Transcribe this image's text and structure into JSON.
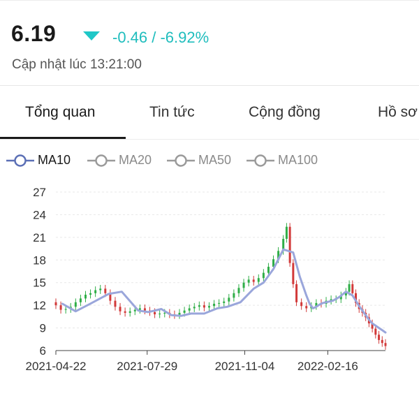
{
  "quote": {
    "price": "6.19",
    "change": "-0.46 / -6.92%",
    "updated": "Cập nhật lúc 13:21:00",
    "trend": "down",
    "down_color": "#1fc7c7"
  },
  "tabs": [
    {
      "label": "Tổng quan",
      "active": true
    },
    {
      "label": "Tin tức",
      "active": false
    },
    {
      "label": "Cộng đồng",
      "active": false
    },
    {
      "label": "Hồ sơ",
      "active": false
    }
  ],
  "legend": [
    {
      "label": "MA10",
      "active": true,
      "color": "#5b6fb5"
    },
    {
      "label": "MA20",
      "active": false,
      "color": "#9a9a9a"
    },
    {
      "label": "MA50",
      "active": false,
      "color": "#9a9a9a"
    },
    {
      "label": "MA100",
      "active": false,
      "color": "#9a9a9a"
    }
  ],
  "chart_data": {
    "type": "candlestick",
    "y_ticks": [
      "27",
      "24",
      "21",
      "18",
      "15",
      "12",
      "9",
      "6"
    ],
    "ylim": [
      6,
      27
    ],
    "x_ticks": [
      "2021-04-22",
      "2021-07-29",
      "2021-11-04",
      "2022-02-16"
    ],
    "x_tick_positions": [
      0,
      0.277,
      0.573,
      0.825
    ],
    "ma_line": {
      "name": "MA10",
      "color": "#9aa6db",
      "t": [
        0.02,
        0.06,
        0.1,
        0.16,
        0.2,
        0.22,
        0.25,
        0.28,
        0.32,
        0.35,
        0.38,
        0.41,
        0.45,
        0.49,
        0.52,
        0.56,
        0.6,
        0.63,
        0.66,
        0.69,
        0.72,
        0.74,
        0.76,
        0.77,
        0.78,
        0.79,
        0.8,
        0.81,
        0.82,
        0.84,
        0.86,
        0.88,
        0.9,
        0.92,
        0.94,
        0.95,
        0.96,
        0.97,
        0.98,
        0.99,
        1.0
      ],
      "values": [
        12.2,
        11.2,
        12.1,
        13.5,
        13.8,
        12.8,
        11.3,
        11.1,
        11.5,
        10.7,
        10.6,
        10.9,
        10.9,
        11.6,
        11.8,
        12.4,
        14.2,
        15.0,
        16.8,
        19.4,
        19.0,
        15.8,
        13.3,
        12.2,
        11.6,
        11.8,
        12.1,
        12.3,
        12.4,
        12.6,
        13.1,
        13.8,
        13.3,
        11.9,
        10.7,
        10.1,
        9.6,
        9.3,
        9.0,
        8.7,
        8.4
      ]
    },
    "candles": {
      "t": [
        0.0,
        0.015,
        0.03,
        0.045,
        0.06,
        0.075,
        0.09,
        0.105,
        0.12,
        0.135,
        0.15,
        0.165,
        0.18,
        0.195,
        0.21,
        0.225,
        0.24,
        0.255,
        0.27,
        0.285,
        0.3,
        0.315,
        0.33,
        0.345,
        0.36,
        0.375,
        0.39,
        0.405,
        0.42,
        0.435,
        0.45,
        0.465,
        0.48,
        0.495,
        0.51,
        0.525,
        0.54,
        0.555,
        0.57,
        0.585,
        0.6,
        0.615,
        0.63,
        0.645,
        0.66,
        0.675,
        0.69,
        0.7,
        0.71,
        0.72,
        0.73,
        0.745,
        0.76,
        0.775,
        0.79,
        0.805,
        0.82,
        0.835,
        0.85,
        0.865,
        0.88,
        0.89,
        0.9,
        0.91,
        0.92,
        0.93,
        0.94,
        0.95,
        0.96,
        0.97,
        0.98,
        0.99,
        1.0
      ],
      "open": [
        12.4,
        12.0,
        11.4,
        11.5,
        11.8,
        12.4,
        12.9,
        13.4,
        13.6,
        14.0,
        14.2,
        13.6,
        12.6,
        11.8,
        11.2,
        11.0,
        11.2,
        11.4,
        11.6,
        11.3,
        11.1,
        10.8,
        10.9,
        11.0,
        10.8,
        10.7,
        11.0,
        11.3,
        11.6,
        11.8,
        12.0,
        11.7,
        11.9,
        12.2,
        12.3,
        12.5,
        13.0,
        13.6,
        14.3,
        15.0,
        15.4,
        15.1,
        15.6,
        16.3,
        17.1,
        18.1,
        19.2,
        20.8,
        22.4,
        17.6,
        14.8,
        12.4,
        11.9,
        11.6,
        11.9,
        12.3,
        12.2,
        12.6,
        12.8,
        12.8,
        13.3,
        13.8,
        14.8,
        13.6,
        12.3,
        11.5,
        11.0,
        10.4,
        9.6,
        8.9,
        8.1,
        7.4,
        7.0
      ],
      "close": [
        12.0,
        11.4,
        11.5,
        11.8,
        12.4,
        12.9,
        13.4,
        13.6,
        14.0,
        14.2,
        13.6,
        12.6,
        11.8,
        11.2,
        11.0,
        11.2,
        11.4,
        11.6,
        11.3,
        11.1,
        10.8,
        10.9,
        11.0,
        10.8,
        10.7,
        11.0,
        11.3,
        11.6,
        11.8,
        12.0,
        11.7,
        11.9,
        12.2,
        12.3,
        12.5,
        13.0,
        13.6,
        14.3,
        15.0,
        15.4,
        15.1,
        15.6,
        16.3,
        17.1,
        18.1,
        19.2,
        20.8,
        22.4,
        17.6,
        14.8,
        12.4,
        11.9,
        11.6,
        11.9,
        12.3,
        12.2,
        12.6,
        12.8,
        12.8,
        13.3,
        13.8,
        14.8,
        13.6,
        12.3,
        11.5,
        11.0,
        10.4,
        9.6,
        8.9,
        8.1,
        7.4,
        7.0,
        6.6
      ]
    }
  },
  "colors": {
    "up": "#2fae47",
    "down": "#d23a3a",
    "grid": "#e7e7e7",
    "axis": "#444444"
  }
}
